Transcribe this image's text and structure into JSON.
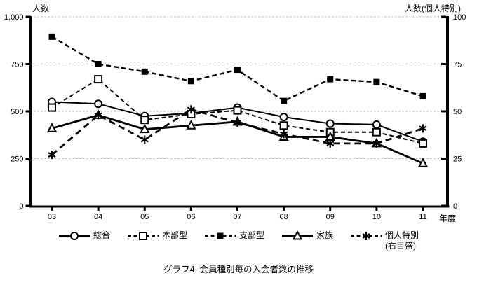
{
  "chart": {
    "left_axis_title": "人数",
    "right_axis_title": "人数(個人特別)",
    "x_axis_unit": "年度"
  },
  "caption": "グラフ4. 会員種別毎の入会者数の推移",
  "chart_data": {
    "type": "line",
    "title": "グラフ4. 会員種別毎の入会者数の推移",
    "categories": [
      "03",
      "04",
      "05",
      "06",
      "07",
      "08",
      "09",
      "10",
      "11"
    ],
    "x_axis": {
      "unit": "年度"
    },
    "left_axis": {
      "title": "人数",
      "min": 0,
      "max": 1000,
      "tick_labels": [
        "0",
        "250",
        "500",
        "750",
        "1,000"
      ],
      "tick_values": [
        0,
        250,
        500,
        750,
        1000
      ]
    },
    "right_axis": {
      "title": "人数(個人特別)",
      "min": 0,
      "max": 100,
      "tick_labels": [
        "0",
        "25",
        "50",
        "75",
        "100"
      ],
      "tick_values": [
        0,
        25,
        50,
        75,
        100
      ]
    },
    "grid": "horizontal-dotted",
    "legend_position": "bottom",
    "series": [
      {
        "label": "総合",
        "axis": "left",
        "line": "solid",
        "marker": "circle-open",
        "values": [
          550,
          540,
          475,
          490,
          520,
          470,
          435,
          430,
          340
        ]
      },
      {
        "label": "本部型",
        "axis": "left",
        "line": "dashed",
        "marker": "square-open",
        "values": [
          520,
          670,
          455,
          485,
          505,
          425,
          390,
          390,
          330
        ]
      },
      {
        "label": "支部型",
        "axis": "left",
        "line": "dashed",
        "marker": "square-filled",
        "values": [
          895,
          750,
          710,
          660,
          720,
          555,
          670,
          655,
          580
        ]
      },
      {
        "label": "家族",
        "axis": "left",
        "line": "solid",
        "marker": "triangle-open",
        "values": [
          410,
          480,
          405,
          425,
          445,
          365,
          365,
          330,
          225
        ]
      },
      {
        "label": "個人特別",
        "note": "(右目盛)",
        "axis": "right",
        "line": "dashed",
        "marker": "asterisk",
        "values": [
          27,
          48,
          35,
          51,
          44,
          38,
          33,
          33,
          41
        ]
      }
    ],
    "colors": {
      "series": "#000000",
      "grid": "#aaaaaa",
      "background": "#ffffff"
    }
  }
}
